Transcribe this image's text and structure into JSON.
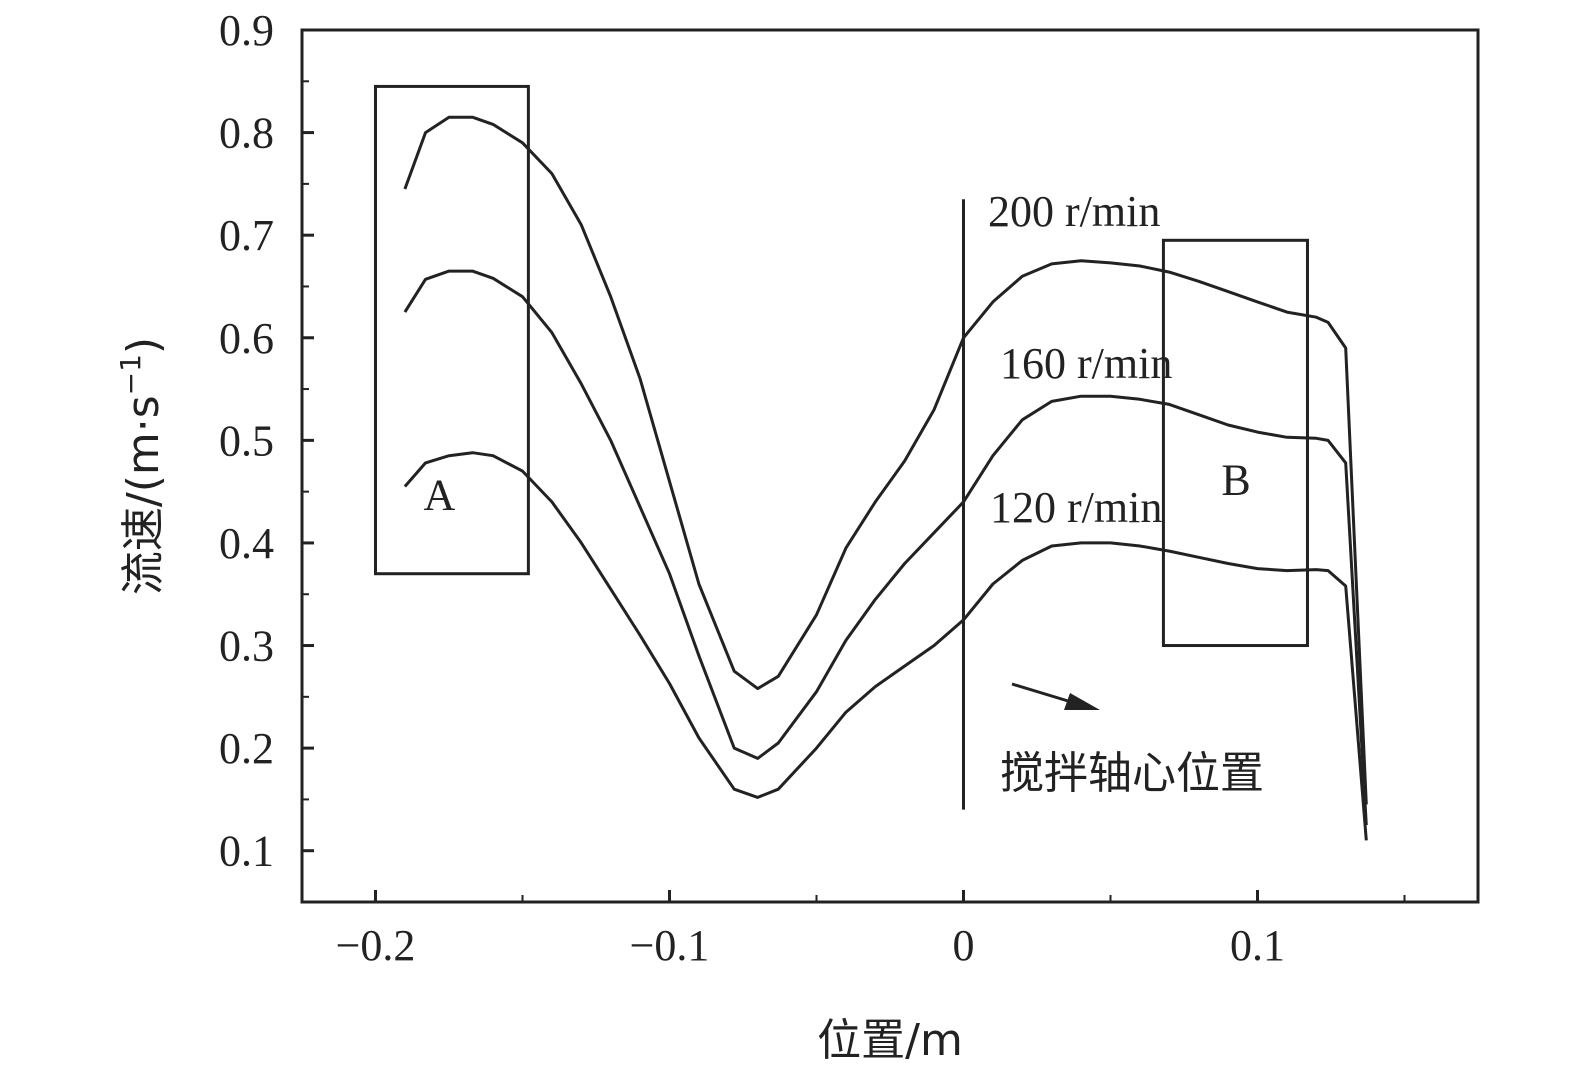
{
  "chart_data": {
    "type": "line",
    "title": "",
    "xlabel": "位置/m",
    "ylabel_main": "流速/(m·s",
    "ylabel_sup": "−1",
    "ylabel_close": ")",
    "xlim": [
      -0.225,
      0.175
    ],
    "ylim": [
      0.05,
      0.9
    ],
    "xticks": [
      -0.2,
      -0.1,
      0,
      0.1
    ],
    "xtick_labels": [
      "−0.2",
      "−0.1",
      "0",
      "0.1"
    ],
    "yticks": [
      0.1,
      0.2,
      0.3,
      0.4,
      0.5,
      0.6,
      0.7,
      0.8,
      0.9
    ],
    "ytick_labels": [
      "0.1",
      "0.2",
      "0.3",
      "0.4",
      "0.5",
      "0.6",
      "0.7",
      "0.8",
      "0.9"
    ],
    "grid": false,
    "colors": {
      "line": "#222222",
      "axis": "#222222"
    },
    "series": [
      {
        "name": "200 r/min",
        "x": [
          -0.19,
          -0.183,
          -0.175,
          -0.167,
          -0.16,
          -0.15,
          -0.14,
          -0.13,
          -0.12,
          -0.11,
          -0.1,
          -0.09,
          -0.078,
          -0.07,
          -0.063,
          -0.05,
          -0.04,
          -0.03,
          -0.02,
          -0.01,
          0.0,
          0.01,
          0.02,
          0.03,
          0.04,
          0.05,
          0.06,
          0.07,
          0.08,
          0.09,
          0.1,
          0.11,
          0.12,
          0.124,
          0.13,
          0.137
        ],
        "y": [
          0.745,
          0.8,
          0.815,
          0.815,
          0.808,
          0.79,
          0.76,
          0.71,
          0.64,
          0.56,
          0.46,
          0.36,
          0.275,
          0.258,
          0.27,
          0.33,
          0.395,
          0.44,
          0.48,
          0.53,
          0.6,
          0.635,
          0.66,
          0.672,
          0.675,
          0.673,
          0.67,
          0.664,
          0.655,
          0.645,
          0.635,
          0.625,
          0.62,
          0.615,
          0.59,
          0.145
        ]
      },
      {
        "name": "160 r/min",
        "x": [
          -0.19,
          -0.183,
          -0.175,
          -0.167,
          -0.16,
          -0.15,
          -0.14,
          -0.13,
          -0.12,
          -0.11,
          -0.1,
          -0.09,
          -0.078,
          -0.07,
          -0.063,
          -0.05,
          -0.04,
          -0.03,
          -0.02,
          -0.01,
          0.0,
          0.01,
          0.02,
          0.03,
          0.04,
          0.05,
          0.06,
          0.07,
          0.08,
          0.09,
          0.1,
          0.11,
          0.12,
          0.124,
          0.13,
          0.137
        ],
        "y": [
          0.625,
          0.657,
          0.665,
          0.665,
          0.658,
          0.64,
          0.605,
          0.555,
          0.5,
          0.435,
          0.37,
          0.29,
          0.2,
          0.19,
          0.205,
          0.255,
          0.305,
          0.345,
          0.38,
          0.41,
          0.44,
          0.485,
          0.52,
          0.538,
          0.543,
          0.543,
          0.54,
          0.535,
          0.525,
          0.515,
          0.508,
          0.503,
          0.502,
          0.5,
          0.478,
          0.125
        ]
      },
      {
        "name": "120 r/min",
        "x": [
          -0.19,
          -0.183,
          -0.175,
          -0.167,
          -0.16,
          -0.15,
          -0.14,
          -0.13,
          -0.12,
          -0.11,
          -0.1,
          -0.09,
          -0.078,
          -0.07,
          -0.063,
          -0.05,
          -0.04,
          -0.03,
          -0.02,
          -0.01,
          0.0,
          0.01,
          0.02,
          0.03,
          0.04,
          0.05,
          0.06,
          0.07,
          0.08,
          0.09,
          0.1,
          0.11,
          0.12,
          0.124,
          0.13,
          0.137
        ],
        "y": [
          0.455,
          0.478,
          0.485,
          0.488,
          0.485,
          0.47,
          0.44,
          0.4,
          0.355,
          0.31,
          0.263,
          0.21,
          0.16,
          0.152,
          0.16,
          0.2,
          0.235,
          0.26,
          0.28,
          0.3,
          0.325,
          0.36,
          0.383,
          0.397,
          0.4,
          0.4,
          0.397,
          0.392,
          0.386,
          0.38,
          0.375,
          0.373,
          0.374,
          0.373,
          0.358,
          0.11
        ]
      }
    ],
    "boxes": [
      {
        "label": "A",
        "x0": -0.2,
        "x1": -0.148,
        "y0": 0.37,
        "y1": 0.845
      },
      {
        "label": "B",
        "x0": 0.068,
        "x1": 0.117,
        "y0": 0.3,
        "y1": 0.695
      }
    ],
    "vertical_line": {
      "x": 0.0,
      "y0": 0.14,
      "y1": 0.735
    },
    "annotation": "搅拌轴心位置"
  }
}
